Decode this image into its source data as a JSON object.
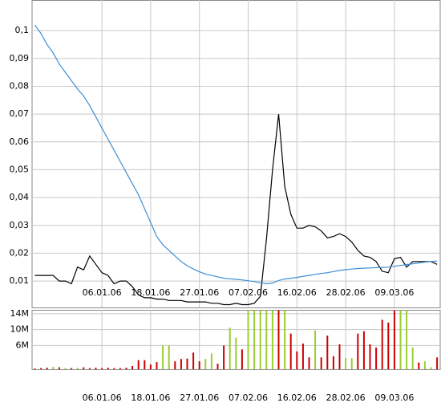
{
  "chart_data": [
    {
      "type": "line",
      "categories": [
        null,
        null,
        null,
        null,
        null,
        null,
        null,
        null,
        null,
        null,
        null,
        "06.01.06",
        null,
        null,
        null,
        null,
        null,
        null,
        null,
        "18.01.06",
        null,
        null,
        null,
        null,
        null,
        null,
        null,
        "27.01.06",
        null,
        null,
        null,
        null,
        null,
        null,
        null,
        "07.02.06",
        null,
        null,
        null,
        null,
        null,
        null,
        null,
        "16.02.06",
        null,
        null,
        null,
        null,
        null,
        null,
        null,
        "28.02.06",
        null,
        null,
        null,
        null,
        null,
        null,
        null,
        "09.03.06",
        null,
        null,
        null,
        null,
        null,
        null,
        null
      ],
      "series": [
        {
          "color": "#000000",
          "values": [
            0.012,
            0.012,
            0.012,
            0.012,
            0.01,
            0.01,
            0.009,
            0.015,
            0.014,
            0.019,
            0.016,
            0.013,
            0.012,
            0.009,
            0.01,
            0.01,
            0.008,
            0.005,
            0.004,
            0.004,
            0.0035,
            0.0035,
            0.003,
            0.003,
            0.003,
            0.0025,
            0.0025,
            0.0025,
            0.0025,
            0.002,
            0.002,
            0.0015,
            0.0015,
            0.002,
            0.0015,
            0.0015,
            0.002,
            0.0045,
            0.025,
            0.05,
            0.07,
            0.044,
            0.034,
            0.029,
            0.029,
            0.03,
            0.0295,
            0.028,
            0.0255,
            0.026,
            0.027,
            0.026,
            0.024,
            0.021,
            0.019,
            0.0185,
            0.017,
            0.0135,
            0.013,
            0.018,
            0.0185,
            0.015,
            0.017,
            0.017,
            0.017,
            0.017,
            0.016
          ]
        },
        {
          "color": "#3c8fd8",
          "values": [
            0.102,
            0.099,
            0.095,
            0.092,
            0.088,
            0.085,
            0.082,
            0.079,
            0.0765,
            0.073,
            0.069,
            0.065,
            0.061,
            0.057,
            0.053,
            0.049,
            0.045,
            0.041,
            0.036,
            0.031,
            0.026,
            0.023,
            0.021,
            0.019,
            0.017,
            0.0155,
            0.0143,
            0.0133,
            0.0125,
            0.012,
            0.0115,
            0.011,
            0.0108,
            0.0106,
            0.0104,
            0.0101,
            0.0098,
            0.0094,
            0.009,
            0.0093,
            0.0102,
            0.0107,
            0.011,
            0.0113,
            0.0117,
            0.012,
            0.0124,
            0.0127,
            0.013,
            0.0134,
            0.0138,
            0.0141,
            0.0143,
            0.0145,
            0.0146,
            0.0147,
            0.0148,
            0.0149,
            0.015,
            0.0153,
            0.0156,
            0.0159,
            0.0162,
            0.0165,
            0.0168,
            0.017,
            0.0172
          ]
        }
      ],
      "ylim": [
        0.0005,
        0.111
      ],
      "yticks": [
        {
          "value": 0.01,
          "label": "0,01"
        },
        {
          "value": 0.02,
          "label": "0,02"
        },
        {
          "value": 0.03,
          "label": "0,03"
        },
        {
          "value": 0.04,
          "label": "0,04"
        },
        {
          "value": 0.05,
          "label": "0,05"
        },
        {
          "value": 0.06,
          "label": "0,06"
        },
        {
          "value": 0.07,
          "label": "0,07"
        },
        {
          "value": 0.08,
          "label": "0,08"
        },
        {
          "value": 0.09,
          "label": "0,09"
        },
        {
          "value": 0.1,
          "label": "0,1"
        }
      ],
      "grid": true
    },
    {
      "type": "bar",
      "categories": [
        null,
        null,
        null,
        null,
        null,
        null,
        null,
        null,
        null,
        null,
        null,
        "06.01.06",
        null,
        null,
        null,
        null,
        null,
        null,
        null,
        "18.01.06",
        null,
        null,
        null,
        null,
        null,
        null,
        null,
        "27.01.06",
        null,
        null,
        null,
        null,
        null,
        null,
        null,
        "07.02.06",
        null,
        null,
        null,
        null,
        null,
        null,
        null,
        "16.02.06",
        null,
        null,
        null,
        null,
        null,
        null,
        null,
        "28.02.06",
        null,
        null,
        null,
        null,
        null,
        null,
        null,
        "09.03.06",
        null,
        null,
        null,
        null,
        null,
        null,
        null
      ],
      "values": [
        200000,
        300000,
        400000,
        600000,
        500000,
        300000,
        300000,
        400000,
        500000,
        300000,
        400000,
        300000,
        400000,
        300000,
        300000,
        400000,
        800000,
        2300000,
        2300000,
        1200000,
        1800000,
        6000000,
        6000000,
        2000000,
        2600000,
        2700000,
        4200000,
        2000000,
        2600000,
        4000000,
        1400000,
        6000000,
        10500000,
        8000000,
        5000000,
        14900000,
        14900000,
        14900000,
        14900000,
        14900000,
        14900000,
        14900000,
        9000000,
        4500000,
        6500000,
        3000000,
        9800000,
        3000000,
        8500000,
        3300000,
        6300000,
        2800000,
        2800000,
        9000000,
        9600000,
        6300000,
        5500000,
        12500000,
        11800000,
        14900000,
        14900000,
        14900000,
        5500000,
        1700000,
        2000000,
        500000,
        3000000
      ],
      "colors": [
        "#cc0000",
        "#cc0000",
        "#cc0000",
        "#9acd32",
        "#cc0000",
        "#9acd32",
        "#cc0000",
        "#9acd32",
        "#cc0000",
        "#cc0000",
        "#cc0000",
        "#cc0000",
        "#cc0000",
        "#cc0000",
        "#cc0000",
        "#cc0000",
        "#cc0000",
        "#cc0000",
        "#cc0000",
        "#cc0000",
        "#cc0000",
        "#9acd32",
        "#9acd32",
        "#cc0000",
        "#cc0000",
        "#cc0000",
        "#cc0000",
        "#cc0000",
        "#9acd32",
        "#9acd32",
        "#cc0000",
        "#cc0000",
        "#9acd32",
        "#9acd32",
        "#cc0000",
        "#9acd32",
        "#9acd32",
        "#9acd32",
        "#9acd32",
        "#9acd32",
        "#cc0000",
        "#9acd32",
        "#cc0000",
        "#cc0000",
        "#cc0000",
        "#cc0000",
        "#9acd32",
        "#cc0000",
        "#cc0000",
        "#cc0000",
        "#cc0000",
        "#9acd32",
        "#9acd32",
        "#cc0000",
        "#cc0000",
        "#cc0000",
        "#cc0000",
        "#cc0000",
        "#cc0000",
        "#cc0000",
        "#9acd32",
        "#9acd32",
        "#9acd32",
        "#cc0000",
        "#9acd32",
        "#9acd32",
        "#cc0000"
      ],
      "ylim": [
        0,
        15000000
      ],
      "yticks": [
        {
          "value": 6000000,
          "label": "6M"
        },
        {
          "value": 10000000,
          "label": "10M"
        },
        {
          "value": 14000000,
          "label": "14M"
        }
      ],
      "grid": true
    }
  ]
}
